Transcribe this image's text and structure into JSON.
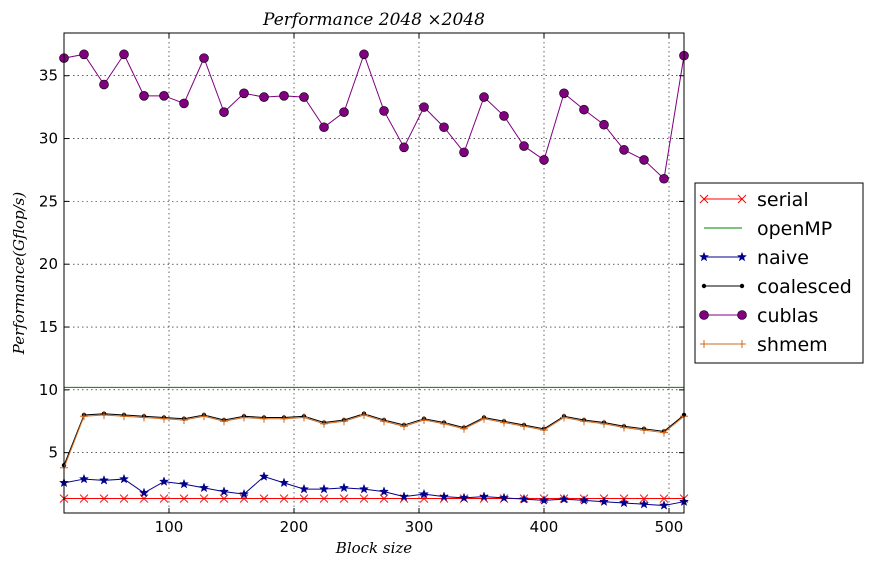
{
  "chart_data": {
    "type": "line",
    "title": "Performance 2048 ×2048",
    "xlabel": "Block size",
    "ylabel": "Performance(Gflop/s)",
    "xlim": [
      16,
      512
    ],
    "ylim": [
      0.2,
      38.4
    ],
    "xticks": [
      100,
      200,
      300,
      400,
      500
    ],
    "yticks": [
      5,
      10,
      15,
      20,
      25,
      30,
      35
    ],
    "grid": true,
    "legend_position": "right",
    "x": [
      16,
      32,
      48,
      64,
      80,
      96,
      112,
      128,
      144,
      160,
      176,
      192,
      208,
      224,
      240,
      256,
      272,
      288,
      304,
      320,
      336,
      352,
      368,
      384,
      400,
      416,
      432,
      448,
      464,
      480,
      496,
      512
    ],
    "series": [
      {
        "name": "serial",
        "color": "#ff0000",
        "marker": "x",
        "values": [
          1.35,
          1.35,
          1.35,
          1.35,
          1.35,
          1.35,
          1.35,
          1.35,
          1.35,
          1.35,
          1.35,
          1.35,
          1.35,
          1.35,
          1.35,
          1.35,
          1.35,
          1.35,
          1.35,
          1.35,
          1.35,
          1.35,
          1.35,
          1.35,
          1.35,
          1.35,
          1.35,
          1.35,
          1.35,
          1.35,
          1.35,
          1.35
        ]
      },
      {
        "name": "openMP",
        "color": "#008000",
        "marker": "none",
        "values": [
          10.2,
          10.2,
          10.2,
          10.2,
          10.2,
          10.2,
          10.2,
          10.2,
          10.2,
          10.2,
          10.2,
          10.2,
          10.2,
          10.2,
          10.2,
          10.2,
          10.2,
          10.2,
          10.2,
          10.2,
          10.2,
          10.2,
          10.2,
          10.2,
          10.2,
          10.2,
          10.2,
          10.2,
          10.2,
          10.2,
          10.2,
          10.2
        ]
      },
      {
        "name": "naive",
        "color": "#00008b",
        "marker": "star",
        "values": [
          2.6,
          2.9,
          2.8,
          2.9,
          1.8,
          2.7,
          2.5,
          2.2,
          1.9,
          1.7,
          3.1,
          2.6,
          2.1,
          2.1,
          2.2,
          2.1,
          1.9,
          1.5,
          1.7,
          1.5,
          1.4,
          1.5,
          1.4,
          1.3,
          1.2,
          1.3,
          1.2,
          1.1,
          1.0,
          0.9,
          0.8,
          1.1
        ]
      },
      {
        "name": "coalesced",
        "color": "#000000",
        "marker": "dot",
        "values": [
          4.0,
          8.0,
          8.1,
          8.0,
          7.9,
          7.8,
          7.7,
          8.0,
          7.6,
          7.9,
          7.8,
          7.8,
          7.9,
          7.4,
          7.6,
          8.1,
          7.6,
          7.2,
          7.7,
          7.4,
          7.0,
          7.8,
          7.5,
          7.2,
          6.9,
          7.9,
          7.6,
          7.4,
          7.1,
          6.9,
          6.7,
          8.0
        ]
      },
      {
        "name": "cublas",
        "color": "#800080",
        "marker": "circle",
        "values": [
          36.4,
          36.7,
          34.3,
          36.7,
          33.4,
          33.4,
          32.8,
          36.4,
          32.1,
          33.6,
          33.3,
          33.4,
          33.3,
          30.9,
          32.1,
          36.7,
          32.2,
          29.3,
          32.5,
          30.9,
          28.9,
          33.3,
          31.8,
          29.4,
          28.3,
          33.6,
          32.3,
          31.1,
          29.1,
          28.3,
          26.8,
          36.6
        ]
      },
      {
        "name": "shmem",
        "color": "#d2691e",
        "marker": "plus",
        "values": [
          3.8,
          7.9,
          8.0,
          7.9,
          7.8,
          7.7,
          7.6,
          7.9,
          7.5,
          7.8,
          7.7,
          7.7,
          7.8,
          7.3,
          7.5,
          8.0,
          7.5,
          7.1,
          7.6,
          7.3,
          6.9,
          7.7,
          7.4,
          7.1,
          6.8,
          7.8,
          7.5,
          7.3,
          7.0,
          6.8,
          6.6,
          7.9
        ]
      }
    ]
  }
}
